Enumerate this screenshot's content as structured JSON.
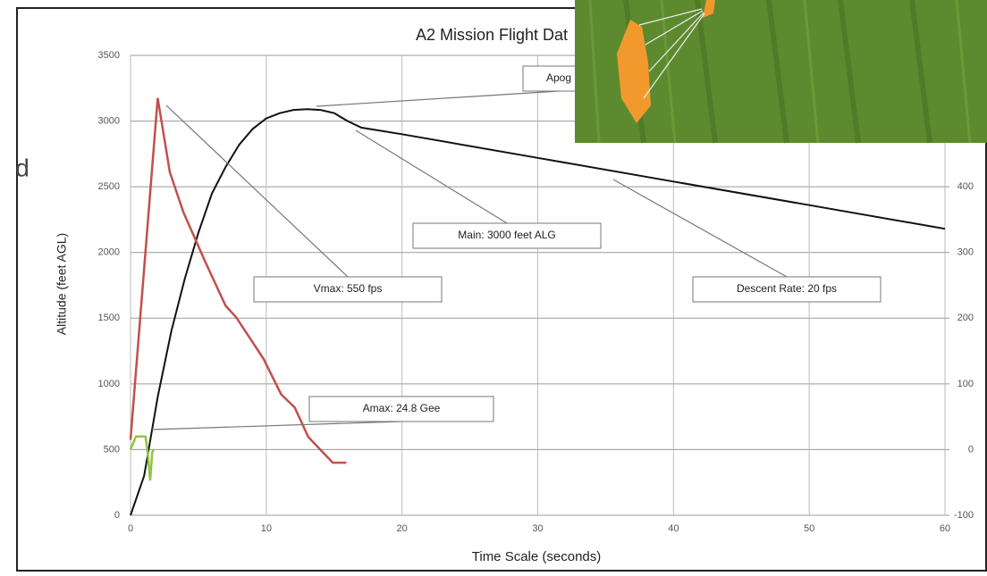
{
  "slide_text": "d",
  "chart_data": {
    "type": "line",
    "title": "A2 Mission Flight Dat",
    "xlabel": "Time Scale (seconds)",
    "ylabel": "Altitude (feet AGL)",
    "xlim": [
      0,
      60
    ],
    "xticks": [
      0,
      10,
      20,
      30,
      40,
      50,
      60
    ],
    "ylim": [
      0,
      3500
    ],
    "yticks": [
      0,
      500,
      1000,
      1500,
      2000,
      2500,
      3000,
      3500
    ],
    "y2lim": [
      -100,
      600
    ],
    "y2ticks": [
      -100,
      0,
      100,
      200,
      300,
      400
    ],
    "grid": true,
    "series": [
      {
        "color": "#111111",
        "x": [
          0,
          1,
          2,
          3,
          4,
          5,
          6,
          7,
          8,
          9,
          10,
          11,
          12,
          13,
          14,
          15,
          16,
          17,
          20,
          30,
          40,
          50,
          60
        ],
        "values": [
          0,
          300,
          900,
          1400,
          1800,
          2150,
          2450,
          2650,
          2820,
          2940,
          3020,
          3060,
          3085,
          3090,
          3085,
          3060,
          3000,
          2950,
          2900,
          2720,
          2540,
          2360,
          2180
        ]
      },
      {
        "color": "#c0504d",
        "axis": "y2",
        "x": [
          0,
          2,
          2.9,
          3.9,
          5.5,
          7,
          7.8,
          9.8,
          11.1,
          12.1,
          13.1,
          14.9,
          15.9
        ],
        "values": [
          15,
          535,
          422,
          361,
          286,
          219,
          201,
          138,
          84,
          64,
          19,
          -20,
          -20
        ]
      },
      {
        "color": "#8dc63f",
        "axis": "y2",
        "x": [
          0,
          0.4,
          1.1,
          1.25,
          1.45,
          1.6,
          1.7
        ],
        "values": [
          0,
          20,
          20,
          -2,
          -47,
          -4,
          0
        ]
      }
    ],
    "annotations": [
      "Vmax: 550 fps",
      "Amax: 24.8 Gee",
      "Main: 3000 feet ALG",
      "Descent Rate: 20 fps",
      "Apog"
    ]
  }
}
